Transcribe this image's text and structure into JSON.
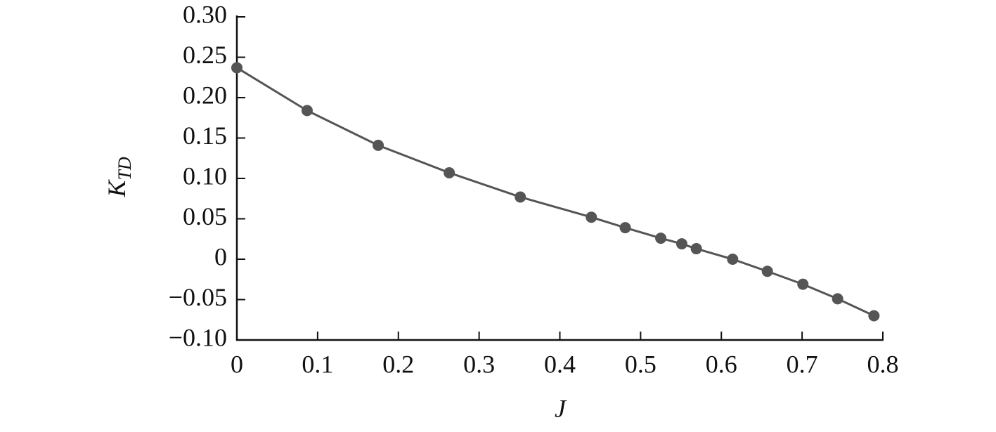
{
  "chart_data": {
    "type": "scatter",
    "xlabel": "J",
    "ylabel": "K",
    "ylabel_subscript": "TD",
    "color": "#555555",
    "x": [
      0,
      0.087,
      0.175,
      0.263,
      0.351,
      0.439,
      0.481,
      0.525,
      0.551,
      0.569,
      0.614,
      0.657,
      0.701,
      0.744,
      0.789
    ],
    "values": [
      0.237,
      0.184,
      0.141,
      0.107,
      0.077,
      0.052,
      0.039,
      0.026,
      0.019,
      0.013,
      0,
      -0.015,
      -0.031,
      -0.049,
      -0.07
    ],
    "connect": true,
    "xlim": [
      0,
      0.8
    ],
    "ylim": [
      -0.1,
      0.3
    ],
    "xticks": [
      0,
      0.1,
      0.2,
      0.3,
      0.4,
      0.5,
      0.6,
      0.7,
      0.8
    ],
    "yticks": [
      {
        "value": -0.1,
        "label": "−0.10"
      },
      {
        "value": -0.05,
        "label": "−0.05"
      },
      0,
      0.05,
      {
        "value": 0.1,
        "label": "0.10"
      },
      0.15,
      {
        "value": 0.2,
        "label": "0.20"
      },
      0.25,
      {
        "value": 0.3,
        "label": "0.30"
      }
    ]
  }
}
